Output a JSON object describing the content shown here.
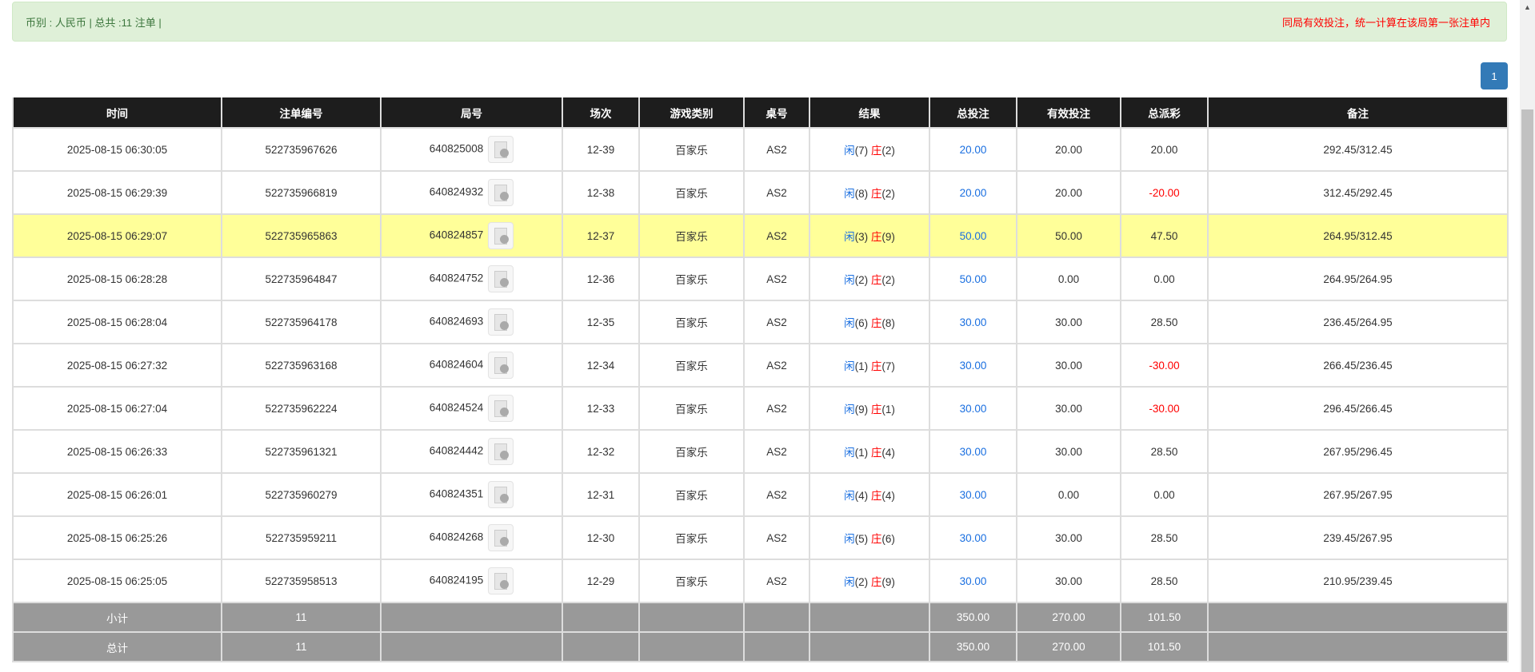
{
  "summary": {
    "left": "币别 : 人民币 | 总共 :11 注单 |",
    "right": "同局有效投注，统一计算在该局第一张注单内"
  },
  "pagination": {
    "current": "1"
  },
  "colors": {
    "blue": "#1a6fe0",
    "red": "#ff0000",
    "highlight": "#ffff99"
  },
  "headers": [
    "时间",
    "注单编号",
    "局号",
    "场次",
    "游戏类别",
    "桌号",
    "结果",
    "总投注",
    "有效投注",
    "总派彩",
    "备注"
  ],
  "rows": [
    {
      "time": "2025-08-15 06:30:05",
      "id": "522735967626",
      "round": "640825008",
      "shoe": "12-39",
      "game": "百家乐",
      "table": "AS2",
      "p": "闲",
      "pv": "(7)",
      "b": "庄",
      "bv": "(2)",
      "bet": "20.00",
      "valid": "20.00",
      "payout": "20.00",
      "neg": false,
      "note": "292.45/312.45"
    },
    {
      "time": "2025-08-15 06:29:39",
      "id": "522735966819",
      "round": "640824932",
      "shoe": "12-38",
      "game": "百家乐",
      "table": "AS2",
      "p": "闲",
      "pv": "(8)",
      "b": "庄",
      "bv": "(2)",
      "bet": "20.00",
      "valid": "20.00",
      "payout": "-20.00",
      "neg": true,
      "note": "312.45/292.45"
    },
    {
      "time": "2025-08-15 06:29:07",
      "id": "522735965863",
      "round": "640824857",
      "shoe": "12-37",
      "game": "百家乐",
      "table": "AS2",
      "p": "闲",
      "pv": "(3)",
      "b": "庄",
      "bv": "(9)",
      "bet": "50.00",
      "valid": "50.00",
      "payout": "47.50",
      "neg": false,
      "note": "264.95/312.45",
      "highlight": true
    },
    {
      "time": "2025-08-15 06:28:28",
      "id": "522735964847",
      "round": "640824752",
      "shoe": "12-36",
      "game": "百家乐",
      "table": "AS2",
      "p": "闲",
      "pv": "(2)",
      "b": "庄",
      "bv": "(2)",
      "bet": "50.00",
      "valid": "0.00",
      "payout": "0.00",
      "neg": false,
      "note": "264.95/264.95"
    },
    {
      "time": "2025-08-15 06:28:04",
      "id": "522735964178",
      "round": "640824693",
      "shoe": "12-35",
      "game": "百家乐",
      "table": "AS2",
      "p": "闲",
      "pv": "(6)",
      "b": "庄",
      "bv": "(8)",
      "bet": "30.00",
      "valid": "30.00",
      "payout": "28.50",
      "neg": false,
      "note": "236.45/264.95"
    },
    {
      "time": "2025-08-15 06:27:32",
      "id": "522735963168",
      "round": "640824604",
      "shoe": "12-34",
      "game": "百家乐",
      "table": "AS2",
      "p": "闲",
      "pv": "(1)",
      "b": "庄",
      "bv": "(7)",
      "bet": "30.00",
      "valid": "30.00",
      "payout": "-30.00",
      "neg": true,
      "note": "266.45/236.45"
    },
    {
      "time": "2025-08-15 06:27:04",
      "id": "522735962224",
      "round": "640824524",
      "shoe": "12-33",
      "game": "百家乐",
      "table": "AS2",
      "p": "闲",
      "pv": "(9)",
      "b": "庄",
      "bv": "(1)",
      "bet": "30.00",
      "valid": "30.00",
      "payout": "-30.00",
      "neg": true,
      "note": "296.45/266.45"
    },
    {
      "time": "2025-08-15 06:26:33",
      "id": "522735961321",
      "round": "640824442",
      "shoe": "12-32",
      "game": "百家乐",
      "table": "AS2",
      "p": "闲",
      "pv": "(1)",
      "b": "庄",
      "bv": "(4)",
      "bet": "30.00",
      "valid": "30.00",
      "payout": "28.50",
      "neg": false,
      "note": "267.95/296.45"
    },
    {
      "time": "2025-08-15 06:26:01",
      "id": "522735960279",
      "round": "640824351",
      "shoe": "12-31",
      "game": "百家乐",
      "table": "AS2",
      "p": "闲",
      "pv": "(4)",
      "b": "庄",
      "bv": "(4)",
      "bet": "30.00",
      "valid": "0.00",
      "payout": "0.00",
      "neg": false,
      "note": "267.95/267.95"
    },
    {
      "time": "2025-08-15 06:25:26",
      "id": "522735959211",
      "round": "640824268",
      "shoe": "12-30",
      "game": "百家乐",
      "table": "AS2",
      "p": "闲",
      "pv": "(5)",
      "b": "庄",
      "bv": "(6)",
      "bet": "30.00",
      "valid": "30.00",
      "payout": "28.50",
      "neg": false,
      "note": "239.45/267.95"
    },
    {
      "time": "2025-08-15 06:25:05",
      "id": "522735958513",
      "round": "640824195",
      "shoe": "12-29",
      "game": "百家乐",
      "table": "AS2",
      "p": "闲",
      "pv": "(2)",
      "b": "庄",
      "bv": "(9)",
      "bet": "30.00",
      "valid": "30.00",
      "payout": "28.50",
      "neg": false,
      "note": "210.95/239.45"
    }
  ],
  "totals": [
    {
      "label": "小计",
      "count": "11",
      "bet": "350.00",
      "valid": "270.00",
      "payout": "101.50"
    },
    {
      "label": "总计",
      "count": "11",
      "bet": "350.00",
      "valid": "270.00",
      "payout": "101.50"
    }
  ]
}
